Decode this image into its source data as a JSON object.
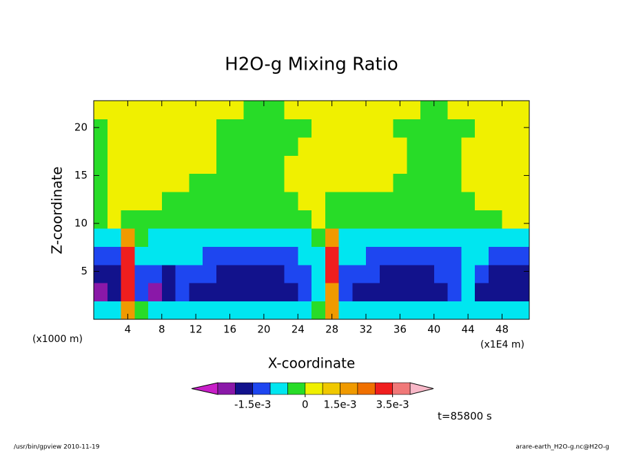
{
  "chart_data": {
    "type": "contour",
    "title": "H2O-g Mixing Ratio",
    "x_label": "X-coordinate",
    "y_label": "Z-coordinate",
    "y_units": "(x1000 m)",
    "x_units": "(x1E4 m)",
    "time_label": "t=85800 s",
    "footer_left": "/usr/bin/gpview  2010-11-19",
    "footer_right": "arare-earth_H2O-g.nc@H2O-g",
    "xlim": [
      0,
      51.2
    ],
    "ylim": [
      0,
      22.8
    ],
    "xticks": [
      4,
      8,
      12,
      16,
      20,
      24,
      28,
      32,
      36,
      40,
      44,
      48
    ],
    "yticks": [
      5,
      10,
      15,
      20
    ],
    "x": [
      0.8,
      2.4,
      4.0,
      5.6,
      7.2,
      8.8,
      10.4,
      12.0,
      13.6,
      15.2,
      16.8,
      18.4,
      20.0,
      21.6,
      23.2,
      24.8,
      26.4,
      28.0,
      29.6,
      31.2,
      32.8,
      34.4,
      36.0,
      37.6,
      39.2,
      40.8,
      42.4,
      44.0,
      45.6,
      47.2,
      48.8,
      50.4
    ],
    "y": [
      0.95,
      2.85,
      4.75,
      6.65,
      8.55,
      10.45,
      12.35,
      14.25,
      16.15,
      18.05,
      19.95,
      21.85
    ],
    "z": [
      [
        -0.0007,
        -0.0007,
        0.0017,
        -0.0002,
        -0.0007,
        -0.0007,
        -0.0007,
        -0.0007,
        -0.0007,
        -0.0007,
        -0.0007,
        -0.0007,
        -0.0007,
        -0.0007,
        -0.0007,
        -0.0007,
        -0.0002,
        0.0017,
        -0.0007,
        -0.0007,
        -0.0007,
        -0.0007,
        -0.0007,
        -0.0007,
        -0.0007,
        -0.0007,
        -0.0007,
        -0.0007,
        -0.0007,
        -0.0007,
        -0.0007,
        -0.0007
      ],
      [
        -0.0022,
        -0.0017,
        0.003,
        -0.0012,
        -0.0022,
        -0.0017,
        -0.0012,
        -0.0017,
        -0.0017,
        -0.0017,
        -0.0017,
        -0.0017,
        -0.0017,
        -0.0017,
        -0.0017,
        -0.0012,
        -0.0007,
        0.0017,
        -0.0012,
        -0.0017,
        -0.0017,
        -0.0017,
        -0.0017,
        -0.0017,
        -0.0017,
        -0.0017,
        -0.0012,
        -0.0007,
        -0.0017,
        -0.0017,
        -0.0017,
        -0.0017
      ],
      [
        -0.0017,
        -0.0017,
        0.003,
        -0.0012,
        -0.0012,
        -0.0017,
        -0.0012,
        -0.0012,
        -0.0012,
        -0.0017,
        -0.0017,
        -0.0017,
        -0.0017,
        -0.0017,
        -0.0012,
        -0.0012,
        -0.0007,
        0.003,
        -0.0012,
        -0.0012,
        -0.0012,
        -0.0017,
        -0.0017,
        -0.0017,
        -0.0017,
        -0.0012,
        -0.0012,
        -0.0007,
        -0.0012,
        -0.0017,
        -0.0017,
        -0.0017
      ],
      [
        -0.0012,
        -0.0012,
        0.003,
        -0.0007,
        -0.0007,
        -0.0007,
        -0.0007,
        -0.0007,
        -0.0012,
        -0.0012,
        -0.0012,
        -0.0012,
        -0.0012,
        -0.0012,
        -0.0012,
        -0.0007,
        -0.0007,
        0.003,
        -0.0007,
        -0.0007,
        -0.0012,
        -0.0012,
        -0.0012,
        -0.0012,
        -0.0012,
        -0.0012,
        -0.0012,
        -0.0007,
        -0.0007,
        -0.0012,
        -0.0012,
        -0.0012
      ],
      [
        -0.0007,
        -0.0007,
        0.0017,
        -0.0002,
        -0.0007,
        -0.0007,
        -0.0007,
        -0.0007,
        -0.0007,
        -0.0007,
        -0.0007,
        -0.0007,
        -0.0007,
        -0.0007,
        -0.0007,
        -0.0007,
        -0.0002,
        0.0017,
        -0.0007,
        -0.0007,
        -0.0007,
        -0.0007,
        -0.0007,
        -0.0007,
        -0.0007,
        -0.0007,
        -0.0007,
        -0.0007,
        -0.0007,
        -0.0007,
        -0.0007,
        -0.0007
      ],
      [
        -0.0002,
        0.0005,
        -0.0002,
        -0.0002,
        -0.0002,
        -0.0002,
        -0.0002,
        -0.0002,
        -0.0002,
        -0.0002,
        -0.0002,
        -0.0002,
        -0.0002,
        -0.0002,
        -0.0002,
        -0.0002,
        0.0005,
        -0.0002,
        -0.0002,
        -0.0002,
        -0.0002,
        -0.0002,
        -0.0002,
        -0.0002,
        -0.0002,
        -0.0002,
        -0.0002,
        -0.0002,
        -0.0002,
        -0.0002,
        0.0005,
        0.0005
      ],
      [
        -0.0002,
        0.0005,
        0.0005,
        0.0005,
        0.0005,
        -0.0002,
        -0.0002,
        -0.0002,
        -0.0002,
        -0.0002,
        -0.0002,
        -0.0002,
        -0.0002,
        -0.0002,
        -0.0002,
        0.0005,
        0.0005,
        -0.0002,
        -0.0002,
        -0.0002,
        -0.0002,
        -0.0002,
        -0.0002,
        -0.0002,
        -0.0002,
        -0.0002,
        -0.0002,
        -0.0002,
        0.0005,
        0.0005,
        0.0005,
        0.0005
      ],
      [
        -0.0002,
        0.0005,
        0.0005,
        0.0005,
        0.0005,
        0.0005,
        0.0005,
        -0.0002,
        -0.0002,
        -0.0002,
        -0.0002,
        -0.0002,
        -0.0002,
        -0.0002,
        0.0005,
        0.0005,
        0.0005,
        0.0005,
        0.0005,
        0.0005,
        0.0005,
        0.0005,
        -0.0002,
        -0.0002,
        -0.0002,
        -0.0002,
        -0.0002,
        0.0005,
        0.0005,
        0.0005,
        0.0005,
        0.0005
      ],
      [
        -0.0002,
        0.0005,
        0.0005,
        0.0005,
        0.0005,
        0.0005,
        0.0005,
        0.0005,
        0.0005,
        -0.0002,
        -0.0002,
        -0.0002,
        -0.0002,
        -0.0002,
        0.0005,
        0.0005,
        0.0005,
        0.0005,
        0.0005,
        0.0005,
        0.0005,
        0.0005,
        0.0005,
        -0.0002,
        -0.0002,
        -0.0002,
        -0.0002,
        0.0005,
        0.0005,
        0.0005,
        0.0005,
        0.0005
      ],
      [
        -0.0002,
        0.0005,
        0.0005,
        0.0005,
        0.0005,
        0.0005,
        0.0005,
        0.0005,
        0.0005,
        -0.0002,
        -0.0002,
        -0.0002,
        -0.0002,
        -0.0002,
        -0.0002,
        0.0005,
        0.0005,
        0.0005,
        0.0005,
        0.0005,
        0.0005,
        0.0005,
        0.0005,
        -0.0002,
        -0.0002,
        -0.0002,
        -0.0002,
        0.0005,
        0.0005,
        0.0005,
        0.0005,
        0.0005
      ],
      [
        -0.0002,
        0.0005,
        0.0005,
        0.0005,
        0.0005,
        0.0005,
        0.0005,
        0.0005,
        0.0005,
        -0.0002,
        -0.0002,
        -0.0002,
        -0.0002,
        -0.0002,
        -0.0002,
        -0.0002,
        0.0005,
        0.0005,
        0.0005,
        0.0005,
        0.0005,
        0.0005,
        -0.0002,
        -0.0002,
        -0.0002,
        -0.0002,
        -0.0002,
        -0.0002,
        0.0005,
        0.0005,
        0.0005,
        0.0005
      ],
      [
        0.0005,
        0.0005,
        0.0005,
        0.0005,
        0.0005,
        0.0005,
        0.0005,
        0.0005,
        0.0005,
        0.0005,
        0.0005,
        -0.0002,
        -0.0002,
        -0.0002,
        0.0005,
        0.0005,
        0.0005,
        0.0005,
        0.0005,
        0.0005,
        0.0005,
        0.0005,
        0.0005,
        0.0005,
        -0.0002,
        -0.0002,
        0.0005,
        0.0005,
        0.0005,
        0.0005,
        0.0005,
        0.0005
      ]
    ],
    "levels": [
      -0.0025,
      -0.002,
      -0.0015,
      -0.001,
      -0.0005,
      0,
      0.001,
      0.0015,
      0.002,
      0.0025,
      0.0035,
      0.0045
    ],
    "colors": [
      "#8a18a8",
      "#12128c",
      "#1e46f0",
      "#00e6f0",
      "#28dc28",
      "#f0f000",
      "#f0c800",
      "#f09a00",
      "#f07000",
      "#f01e1e",
      "#f07878"
    ],
    "under_color": "#c81ec8",
    "over_color": "#f8b8c8",
    "colorbar_ticks": [
      {
        "value": -0.0015,
        "label": "-1.5e-3"
      },
      {
        "value": 0,
        "label": "0"
      },
      {
        "value": 0.0015,
        "label": "1.5e-3"
      },
      {
        "value": 0.0035,
        "label": "3.5e-3"
      }
    ]
  }
}
